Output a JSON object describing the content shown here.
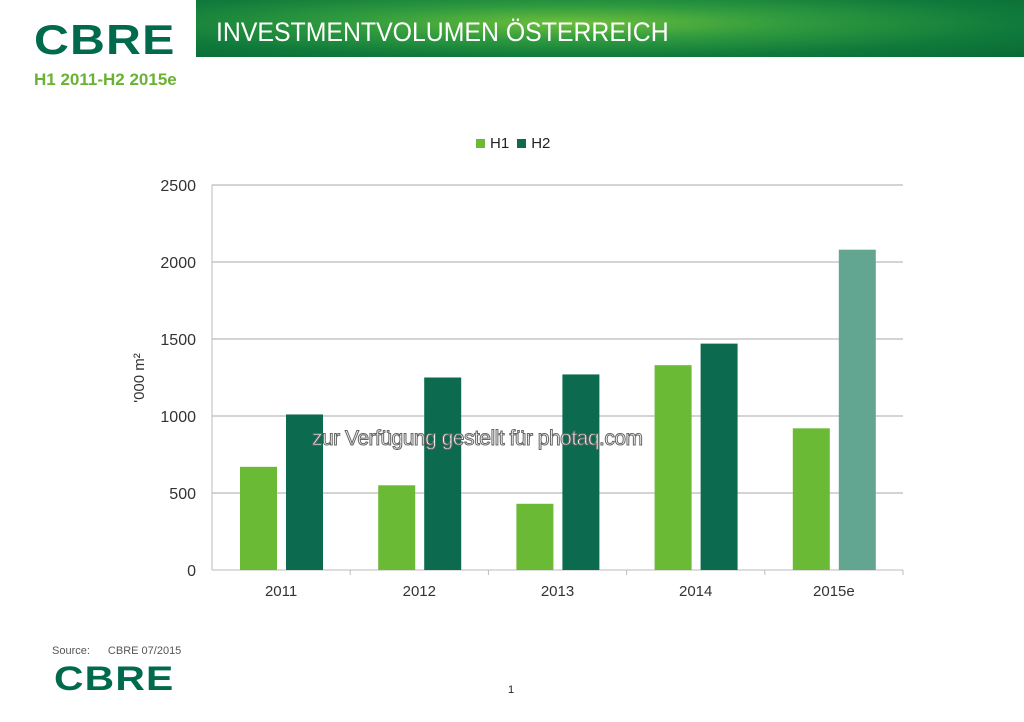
{
  "header": {
    "logo": "CBRE",
    "title": "INVESTMENTVOLUMEN ÖSTERREICH",
    "subtitle": "H1 2011-H2 2015e"
  },
  "chart_data": {
    "type": "bar",
    "title": "",
    "categories": [
      "2011",
      "2012",
      "2013",
      "2014",
      "2015e"
    ],
    "series": [
      {
        "name": "H1",
        "color": "#6aba35",
        "values": [
          670,
          550,
          430,
          1330,
          920
        ]
      },
      {
        "name": "H2",
        "color": "#0c6b4e",
        "values": [
          1010,
          1250,
          1270,
          1470,
          2080
        ],
        "highlight_last_color": "#62a692"
      }
    ],
    "xlabel": "",
    "ylabel": "'000 m²",
    "ylim": [
      0,
      2500
    ],
    "yticks": [
      0,
      500,
      1000,
      1500,
      2000,
      2500
    ],
    "grid": true,
    "legend": "top"
  },
  "watermark": "zur Verfügung gestellt für photaq.com",
  "footer": {
    "source_label": "Source:",
    "source_value": "CBRE 07/2015",
    "logo": "CBRE",
    "page": "1"
  }
}
